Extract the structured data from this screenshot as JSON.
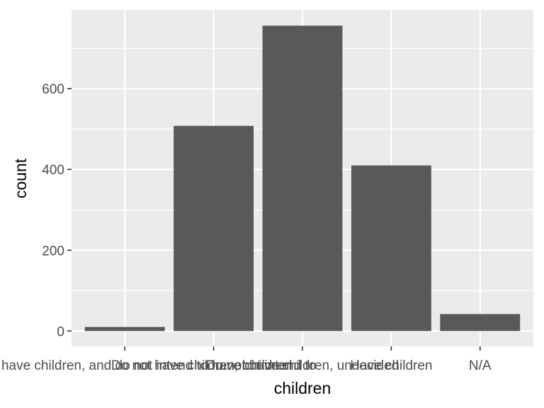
{
  "chart_data": {
    "type": "bar",
    "categories": [
      "Do not have children, and do not intend to have children",
      "Do not have children, but intend to",
      "Do not have children, undecided",
      "Have children",
      "N/A"
    ],
    "category_labels": [
      "Do not have children, and do not intend to have children",
      "Do not have children, but intend to",
      "Do not have children, undecided",
      "Have children",
      "N/A"
    ],
    "visible_category_labels": [
      "Do not have children, and do not intend to have children",
      "Do not have children, but intend to",
      "Do not have children, undecided",
      "Have children",
      "N/A"
    ],
    "values": [
      10,
      508,
      756,
      410,
      42
    ],
    "xlabel": "children",
    "ylabel": "count",
    "ylim": [
      -38,
      795
    ],
    "yticks": [
      0,
      200,
      400,
      600
    ],
    "ytick_labels": [
      "0",
      "200",
      "400",
      "600"
    ],
    "grid": true,
    "colors": {
      "panel": "#ebebeb",
      "grid": "#ffffff",
      "bar": "#595959",
      "tick": "#333333",
      "tick_text": "#4d4d4d",
      "title_text": "#000000"
    }
  }
}
